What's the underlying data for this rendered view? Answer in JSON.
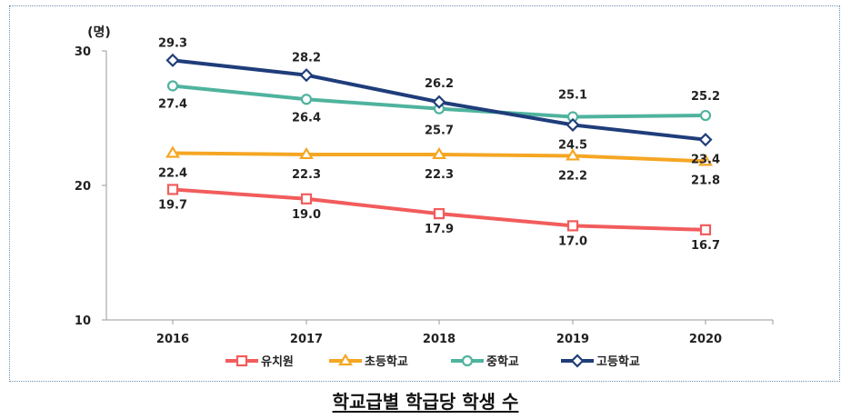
{
  "chart_data": {
    "type": "line",
    "categories": [
      "2016",
      "2017",
      "2018",
      "2019",
      "2020"
    ],
    "y_unit_label": "(명)",
    "ylim": [
      10,
      30
    ],
    "yticks": [
      10,
      20,
      30
    ],
    "grid": false,
    "legend_position": "bottom",
    "series": [
      {
        "name": "유치원",
        "color": "#f25c5c",
        "marker": "square",
        "values": [
          19.7,
          19.0,
          17.9,
          17.0,
          16.7
        ],
        "labels": [
          "19.7",
          "19.0",
          "17.9",
          "17.0",
          "16.7"
        ],
        "label_side": "below"
      },
      {
        "name": "초등학교",
        "color": "#f5a623",
        "marker": "triangle",
        "values": [
          22.4,
          22.3,
          22.3,
          22.2,
          21.8
        ],
        "labels": [
          "22.4",
          "22.3",
          "22.3",
          "22.2",
          "21.8"
        ],
        "label_side": "below"
      },
      {
        "name": "중학교",
        "color": "#4fb39e",
        "marker": "circle",
        "values": [
          27.4,
          26.4,
          25.7,
          25.1,
          25.2
        ],
        "labels": [
          "27.4",
          "26.4",
          "25.7",
          "25.1",
          "25.2"
        ],
        "label_side": "mixed"
      },
      {
        "name": "고등학교",
        "color": "#1f3d7a",
        "marker": "diamond",
        "values": [
          29.3,
          28.2,
          26.2,
          24.5,
          23.4
        ],
        "labels": [
          "29.3",
          "28.2",
          "26.2",
          "24.5",
          "23.4"
        ],
        "label_side": "mixed"
      }
    ]
  },
  "caption": "학교급별 학급당 학생 수"
}
